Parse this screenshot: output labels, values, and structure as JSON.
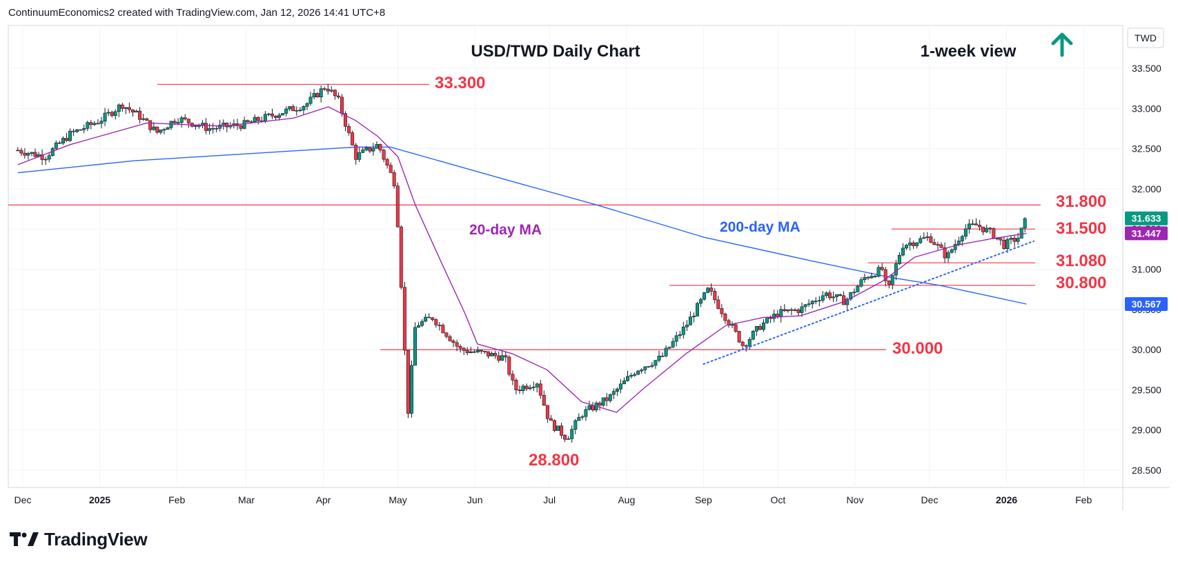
{
  "header": {
    "text": "ContinuumEconomics2 created with TradingView.com, Jan 12, 2026 14:41 UTC+8"
  },
  "chart": {
    "title": "USD/TWD Daily Chart",
    "view": "1-week view",
    "arrow": "up-arrow-icon",
    "symbol": "TWD",
    "ma20_label": "20-day MA",
    "ma200_label": "200-day MA",
    "colors": {
      "up": "#089981",
      "down": "#f23645",
      "ma20": "#9c27b0",
      "ma200": "#2962ff",
      "level": "#f23645",
      "trend": "#2962ff",
      "arrow": "#089981"
    }
  },
  "chart_data": {
    "type": "candlestick",
    "title": "USD/TWD Daily Chart",
    "y_ticks": [
      "33.500",
      "33.000",
      "32.500",
      "32.000",
      "31.500",
      "31.000",
      "30.500",
      "30.000",
      "29.500",
      "29.000",
      "28.500"
    ],
    "x_ticks": [
      "Dec",
      "2025",
      "Feb",
      "Mar",
      "Apr",
      "May",
      "Jun",
      "Jul",
      "Aug",
      "Sep",
      "Oct",
      "Nov",
      "Dec",
      "2026",
      "Feb"
    ],
    "ylim": [
      28.2,
      33.75
    ],
    "levels": [
      {
        "label": "33.300",
        "value": 33.3
      },
      {
        "label": "31.800",
        "value": 31.8
      },
      {
        "label": "31.500",
        "value": 31.5
      },
      {
        "label": "31.080",
        "value": 31.08
      },
      {
        "label": "30.800",
        "value": 30.8
      },
      {
        "label": "30.000",
        "value": 30.0
      },
      {
        "label": "28.800",
        "value": 28.8
      }
    ],
    "last_price": {
      "label": "31.633",
      "value": 31.633
    },
    "ma20_last": {
      "label": "31.447",
      "value": 31.447
    },
    "ma200_last": {
      "label": "30.567",
      "value": 30.567
    },
    "price_path": [
      [
        "2024-11-29",
        32.48
      ],
      [
        "2024-12-10",
        32.4
      ],
      [
        "2024-12-20",
        32.68
      ],
      [
        "2025-01-01",
        32.85
      ],
      [
        "2025-01-10",
        33.05
      ],
      [
        "2025-01-17",
        32.9
      ],
      [
        "2025-01-24",
        32.7
      ],
      [
        "2025-02-01",
        32.88
      ],
      [
        "2025-02-14",
        32.75
      ],
      [
        "2025-02-28",
        32.8
      ],
      [
        "2025-03-10",
        32.9
      ],
      [
        "2025-03-25",
        33.05
      ],
      [
        "2025-04-02",
        33.28
      ],
      [
        "2025-04-07",
        33.1
      ],
      [
        "2025-04-14",
        32.4
      ],
      [
        "2025-04-23",
        32.55
      ],
      [
        "2025-04-30",
        32.05
      ],
      [
        "2025-05-02",
        31.0
      ],
      [
        "2025-05-05",
        29.2
      ],
      [
        "2025-05-08",
        30.3
      ],
      [
        "2025-05-15",
        30.4
      ],
      [
        "2025-05-26",
        30.0
      ],
      [
        "2025-06-05",
        29.95
      ],
      [
        "2025-06-13",
        29.9
      ],
      [
        "2025-06-17",
        29.5
      ],
      [
        "2025-06-26",
        29.6
      ],
      [
        "2025-07-01",
        29.1
      ],
      [
        "2025-07-08",
        28.9
      ],
      [
        "2025-07-14",
        29.2
      ],
      [
        "2025-07-25",
        29.4
      ],
      [
        "2025-08-05",
        29.75
      ],
      [
        "2025-08-15",
        29.9
      ],
      [
        "2025-08-25",
        30.3
      ],
      [
        "2025-09-03",
        30.75
      ],
      [
        "2025-09-10",
        30.4
      ],
      [
        "2025-09-17",
        30.05
      ],
      [
        "2025-09-24",
        30.3
      ],
      [
        "2025-10-01",
        30.45
      ],
      [
        "2025-10-10",
        30.5
      ],
      [
        "2025-10-20",
        30.7
      ],
      [
        "2025-10-28",
        30.6
      ],
      [
        "2025-11-05",
        30.9
      ],
      [
        "2025-11-12",
        31.0
      ],
      [
        "2025-11-14",
        30.7
      ],
      [
        "2025-11-20",
        31.3
      ],
      [
        "2025-12-01",
        31.4
      ],
      [
        "2025-12-08",
        31.15
      ],
      [
        "2025-12-15",
        31.5
      ],
      [
        "2025-12-20",
        31.55
      ],
      [
        "2025-12-26",
        31.45
      ],
      [
        "2025-12-31",
        31.3
      ],
      [
        "2026-01-06",
        31.4
      ],
      [
        "2026-01-09",
        31.633
      ]
    ],
    "ma20": [
      [
        "2024-11-29",
        32.3
      ],
      [
        "2024-12-20",
        32.55
      ],
      [
        "2025-01-20",
        32.82
      ],
      [
        "2025-02-20",
        32.78
      ],
      [
        "2025-03-20",
        32.88
      ],
      [
        "2025-04-03",
        33.02
      ],
      [
        "2025-04-14",
        32.85
      ],
      [
        "2025-04-23",
        32.65
      ],
      [
        "2025-05-01",
        32.4
      ],
      [
        "2025-05-08",
        31.8
      ],
      [
        "2025-05-19",
        31.05
      ],
      [
        "2025-05-28",
        30.45
      ],
      [
        "2025-06-02",
        30.07
      ],
      [
        "2025-06-16",
        29.95
      ],
      [
        "2025-06-30",
        29.75
      ],
      [
        "2025-07-14",
        29.35
      ],
      [
        "2025-07-28",
        29.22
      ],
      [
        "2025-08-08",
        29.52
      ],
      [
        "2025-08-25",
        29.95
      ],
      [
        "2025-09-10",
        30.3
      ],
      [
        "2025-09-25",
        30.4
      ],
      [
        "2025-10-10",
        30.42
      ],
      [
        "2025-10-28",
        30.6
      ],
      [
        "2025-11-12",
        30.85
      ],
      [
        "2025-11-25",
        31.15
      ],
      [
        "2025-12-12",
        31.3
      ],
      [
        "2025-12-26",
        31.38
      ],
      [
        "2026-01-09",
        31.447
      ]
    ],
    "ma200": [
      [
        "2024-11-29",
        32.2
      ],
      [
        "2025-01-15",
        32.35
      ],
      [
        "2025-04-14",
        32.52
      ],
      [
        "2025-04-28",
        32.52
      ],
      [
        "2025-06-15",
        32.1
      ],
      [
        "2025-07-20",
        31.8
      ],
      [
        "2025-09-01",
        31.4
      ],
      [
        "2025-10-15",
        31.1
      ],
      [
        "2025-11-15",
        30.9
      ],
      [
        "2025-12-05",
        30.8
      ],
      [
        "2026-01-09",
        30.567
      ]
    ],
    "trendline": [
      [
        "2025-09-01",
        29.82
      ],
      [
        "2026-01-12",
        31.35
      ]
    ],
    "annotations": [
      "20-day MA",
      "200-day MA",
      "1-week view"
    ]
  }
}
